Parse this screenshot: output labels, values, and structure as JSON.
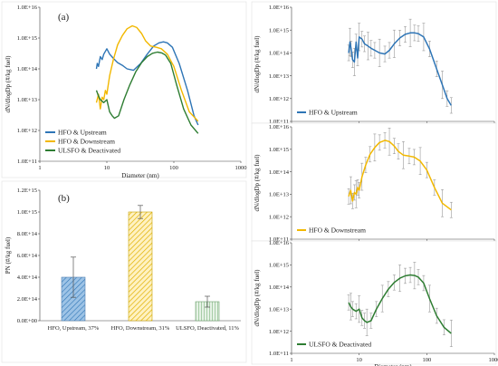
{
  "chart_data": [
    {
      "id": "a",
      "type": "line",
      "panel_label": "(a)",
      "xscale": "log",
      "yscale": "log",
      "xlim": [
        1,
        1000
      ],
      "ylim": [
        100000000000.0,
        1e+16
      ],
      "xlabel": "Diameter (nm)",
      "ylabel": "dN/dlogDp (#/kg fuel)",
      "xticks": [
        "1",
        "10",
        "100",
        "1000"
      ],
      "yticks": [
        "1.0E+11",
        "1.0E+12",
        "1.0E+13",
        "1.0E+14",
        "1.0E+15",
        "1.0E+16"
      ],
      "legend_position": "bottom-left",
      "series": [
        {
          "name": "HFO & Upstream",
          "color": "#2e75b6",
          "x": [
            7.0,
            7.2,
            7.5,
            8.0,
            8.5,
            9.0,
            10.0,
            11.0,
            12.5,
            14.5,
            17.0,
            20.0,
            25.0,
            32.0,
            40.0,
            50.0,
            60.0,
            70.0,
            80.0,
            95.0,
            120.0,
            160.0,
            200.0,
            230.0
          ],
          "y": [
            100000000000000.0,
            150000000000000.0,
            120000000000000.0,
            250000000000000.0,
            200000000000000.0,
            300000000000000.0,
            450000000000000.0,
            300000000000000.0,
            220000000000000.0,
            160000000000000.0,
            130000000000000.0,
            100000000000000.0,
            90000000000000.0,
            150000000000000.0,
            300000000000000.0,
            550000000000000.0,
            700000000000000.0,
            750000000000000.0,
            700000000000000.0,
            500000000000000.0,
            150000000000000.0,
            20000000000000.0,
            3000000000000.0,
            1500000000000.0
          ]
        },
        {
          "name": "HFO & Downstream",
          "color": "#f2b800",
          "x": [
            7.0,
            7.5,
            8.0,
            8.5,
            9.0,
            9.5,
            10.0,
            11.0,
            12.5,
            14.5,
            17.0,
            20.0,
            24.0,
            28.0,
            33.0,
            38.0,
            45.0,
            55.0,
            65.0,
            80.0,
            100.0,
            130.0,
            170.0,
            230.0
          ],
          "y": [
            8000000000000.0,
            15000000000000.0,
            5000000000000.0,
            12000000000000.0,
            10000000000000.0,
            20000000000000.0,
            15000000000000.0,
            60000000000000.0,
            200000000000000.0,
            600000000000000.0,
            1200000000000000.0,
            2000000000000000.0,
            2500000000000000.0,
            2200000000000000.0,
            1400000000000000.0,
            800000000000000.0,
            550000000000000.0,
            500000000000000.0,
            450000000000000.0,
            300000000000000.0,
            120000000000000.0,
            20000000000000.0,
            4000000000000.0,
            2000000000000.0
          ]
        },
        {
          "name": "ULSFO & Deactivated",
          "color": "#2e7d32",
          "x": [
            7.0,
            7.5,
            8.0,
            9.0,
            10.0,
            11.0,
            12.0,
            13.0,
            15.0,
            18.0,
            22.0,
            27.0,
            33.0,
            40.0,
            48.0,
            57.0,
            66.0,
            75.0,
            90.0,
            110.0,
            140.0,
            180.0,
            230.0
          ],
          "y": [
            20000000000000.0,
            13000000000000.0,
            10000000000000.0,
            8000000000000.0,
            10000000000000.0,
            4000000000000.0,
            3000000000000.0,
            2500000000000.0,
            3000000000000.0,
            10000000000000.0,
            30000000000000.0,
            80000000000000.0,
            160000000000000.0,
            250000000000000.0,
            320000000000000.0,
            350000000000000.0,
            330000000000000.0,
            280000000000000.0,
            150000000000000.0,
            30000000000000.0,
            5000000000000.0,
            1500000000000.0,
            800000000000.0
          ]
        }
      ]
    },
    {
      "id": "b",
      "type": "bar",
      "panel_label": "(b)",
      "categories": [
        "HFO, Upstream, 37%",
        "HFO, Downstream, 31%",
        "ULSFO, Deactivated, 11%"
      ],
      "values": [
        400000000000000.0,
        1000000000000000.0,
        175000000000000.0
      ],
      "errors": [
        185000000000000.0,
        60000000000000.0,
        50000000000000.0
      ],
      "colors": [
        "#5b9bd5",
        "#f2c94c",
        "#8fbc8f"
      ],
      "ylim": [
        0,
        1200000000000000.0
      ],
      "ylabel": "PN (#/kg fuel)",
      "yticks": [
        "0.0E+00",
        "2.0E+14",
        "4.0E+14",
        "6.0E+14",
        "8.0E+14",
        "1.0E+15",
        "1.2E+15"
      ]
    },
    {
      "id": "c1",
      "type": "line",
      "xscale": "log",
      "yscale": "log",
      "xlim": [
        1,
        1000
      ],
      "ylim": [
        100000000000.0,
        1e+16
      ],
      "ylabel": "dN/dlogDp (#/kg fuel)",
      "yticks": [
        "1.0E+11",
        "1.0E+12",
        "1.0E+13",
        "1.0E+14",
        "1.0E+15",
        "1.0E+16"
      ],
      "legend": "HFO & Upstream",
      "color": "#2e75b6",
      "x": [
        7.0,
        7.3,
        7.6,
        8.0,
        8.5,
        9.0,
        9.5,
        10.0,
        11.0,
        12.0,
        13.5,
        15.0,
        17.0,
        20.0,
        24.0,
        28.0,
        33.0,
        40.0,
        48.0,
        57.0,
        66.0,
        75.0,
        90.0,
        110.0,
        140.0,
        170.0,
        200.0,
        230.0
      ],
      "y": [
        100000000000000.0,
        300000000000000.0,
        150000000000000.0,
        50000000000000.0,
        40000000000000.0,
        300000000000000.0,
        60000000000000.0,
        500000000000000.0,
        400000000000000.0,
        250000000000000.0,
        200000000000000.0,
        160000000000000.0,
        130000000000000.0,
        100000000000000.0,
        90000000000000.0,
        130000000000000.0,
        250000000000000.0,
        450000000000000.0,
        650000000000000.0,
        750000000000000.0,
        750000000000000.0,
        700000000000000.0,
        500000000000000.0,
        150000000000000.0,
        20000000000000.0,
        4000000000000.0,
        1000000000000.0,
        500000000000.0
      ]
    },
    {
      "id": "c2",
      "type": "line",
      "xscale": "log",
      "yscale": "log",
      "xlim": [
        1,
        1000
      ],
      "ylim": [
        100000000000.0,
        1e+16
      ],
      "ylabel": "dN/dlogDp (#/kg fuel)",
      "yticks": [
        "1.0E+11",
        "1.0E+12",
        "1.0E+13",
        "1.0E+14",
        "1.0E+15",
        "1.0E+16"
      ],
      "legend": "HFO & Downstream",
      "color": "#f2b800",
      "x": [
        7.0,
        7.5,
        8.0,
        8.5,
        9.0,
        9.5,
        10.0,
        11.0,
        12.5,
        14.5,
        17.0,
        20.0,
        24.0,
        28.0,
        33.0,
        38.0,
        45.0,
        55.0,
        65.0,
        80.0,
        100.0,
        130.0,
        170.0,
        230.0
      ],
      "y": [
        8000000000000.0,
        15000000000000.0,
        5000000000000.0,
        12000000000000.0,
        10000000000000.0,
        20000000000000.0,
        15000000000000.0,
        60000000000000.0,
        200000000000000.0,
        600000000000000.0,
        1200000000000000.0,
        2000000000000000.0,
        2500000000000000.0,
        2200000000000000.0,
        1400000000000000.0,
        800000000000000.0,
        550000000000000.0,
        500000000000000.0,
        450000000000000.0,
        300000000000000.0,
        120000000000000.0,
        20000000000000.0,
        4000000000000.0,
        2000000000000.0
      ]
    },
    {
      "id": "c3",
      "type": "line",
      "xscale": "log",
      "yscale": "log",
      "xlim": [
        1,
        1000
      ],
      "ylim": [
        100000000000.0,
        1e+16
      ],
      "xlabel": "Diameter (nm)",
      "ylabel": "dN/dlogDp (#/kg fuel)",
      "xticks": [
        "1",
        "10",
        "100",
        "1000"
      ],
      "yticks": [
        "1.0E+11",
        "1.0E+12",
        "1.0E+13",
        "1.0E+14",
        "1.0E+15",
        "1.0E+16"
      ],
      "legend": "ULSFO & Deactivated",
      "color": "#2e7d32",
      "x": [
        7.0,
        7.5,
        8.0,
        9.0,
        10.0,
        11.0,
        12.0,
        13.0,
        15.0,
        18.0,
        22.0,
        27.0,
        33.0,
        40.0,
        48.0,
        57.0,
        66.0,
        75.0,
        90.0,
        110.0,
        140.0,
        180.0,
        230.0
      ],
      "y": [
        20000000000000.0,
        13000000000000.0,
        10000000000000.0,
        8000000000000.0,
        10000000000000.0,
        4000000000000.0,
        3000000000000.0,
        2500000000000.0,
        3000000000000.0,
        10000000000000.0,
        30000000000000.0,
        80000000000000.0,
        160000000000000.0,
        250000000000000.0,
        320000000000000.0,
        350000000000000.0,
        330000000000000.0,
        280000000000000.0,
        150000000000000.0,
        30000000000000.0,
        5000000000000.0,
        1500000000000.0,
        800000000000.0
      ]
    }
  ]
}
